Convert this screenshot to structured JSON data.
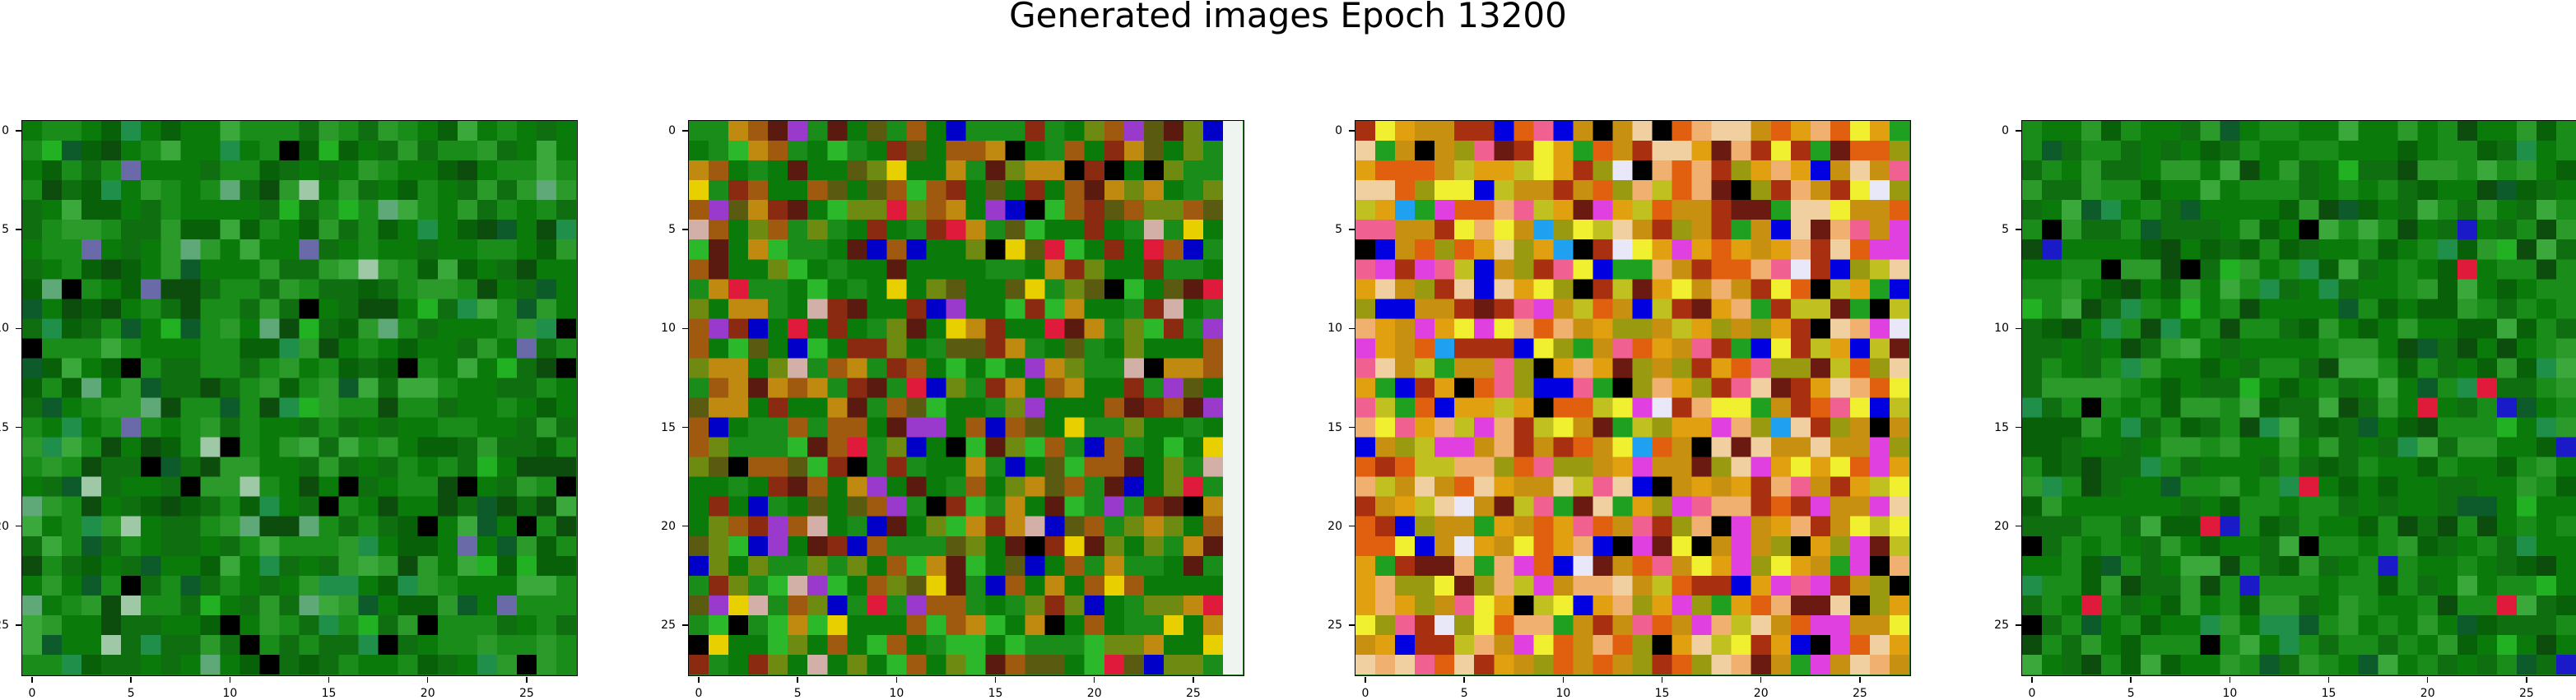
{
  "figure": {
    "title": "Generated images Epoch 13200"
  },
  "axes": {
    "x_ticks": [
      "0",
      "5",
      "10",
      "15",
      "20",
      "25"
    ],
    "y_ticks": [
      "0",
      "5",
      "10",
      "15",
      "20",
      "25"
    ],
    "tick_values": [
      0,
      5,
      10,
      15,
      20,
      25
    ],
    "image_size": 28
  },
  "panels": [
    {
      "palette": [
        "#0a7a0a",
        "#1a8c1a",
        "#0f6e0f",
        "#2b9a2b",
        "#086008",
        "#3aa83a",
        "#0d5a2a",
        "#1f8f4a",
        "#000000",
        "#5fa878",
        "#9ec8a6",
        "#22b122",
        "#0c4c0c",
        "#6a6aa8"
      ],
      "palette_weights": [
        28,
        22,
        18,
        10,
        10,
        5,
        4,
        3,
        3,
        2,
        1,
        3,
        6,
        1
      ],
      "seed": 11
    },
    {
      "palette": [
        "#0a7a0a",
        "#1a8c1a",
        "#6e8a10",
        "#a05a10",
        "#c08a10",
        "#8a2a10",
        "#5a1a10",
        "#d2b0a8",
        "#0000c8",
        "#e01a3a",
        "#9a3acc",
        "#2bb82b",
        "#5a5a10",
        "#000000",
        "#e8d000"
      ],
      "palette_weights": [
        18,
        14,
        8,
        8,
        6,
        5,
        4,
        2,
        3,
        2,
        2,
        5,
        4,
        3,
        2
      ],
      "seed": 23,
      "last_column_color": "#f0f4f0"
    },
    {
      "palette": [
        "#c89010",
        "#e0a010",
        "#a83010",
        "#e06010",
        "#f0d0a0",
        "#c0c020",
        "#0000e0",
        "#f0f030",
        "#e040e0",
        "#f06090",
        "#000000",
        "#6a1a10",
        "#9a9a10",
        "#f0b070",
        "#20a0f0",
        "#e8e8f8",
        "#20a020"
      ],
      "palette_weights": [
        12,
        10,
        8,
        8,
        6,
        6,
        5,
        5,
        4,
        5,
        3,
        4,
        6,
        6,
        1,
        2,
        3
      ],
      "seed": 37
    },
    {
      "palette": [
        "#0a7a0a",
        "#1a8c1a",
        "#0f6e0f",
        "#2b9a2b",
        "#086008",
        "#3aa83a",
        "#0d5a2a",
        "#1f8f4a",
        "#000000",
        "#0c4c0c",
        "#e01a3a",
        "#1a1ac8",
        "#22b122"
      ],
      "palette_weights": [
        26,
        22,
        18,
        10,
        10,
        5,
        4,
        3,
        2,
        6,
        1,
        1,
        2
      ],
      "seed": 53
    }
  ]
}
